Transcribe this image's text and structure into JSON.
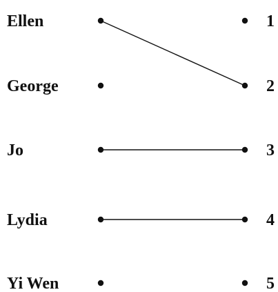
{
  "left_items": [
    "Ellen",
    "George",
    "Jo",
    "Lydia",
    "Yi Wen"
  ],
  "right_items": [
    "1",
    "2",
    "3",
    "4",
    "5"
  ],
  "connections": [
    {
      "from": "Ellen",
      "to": "2"
    },
    {
      "from": "Jo",
      "to": "3"
    },
    {
      "from": "Lydia",
      "to": "4"
    }
  ],
  "colors": {
    "ink": "#111111",
    "background": "#ffffff"
  }
}
